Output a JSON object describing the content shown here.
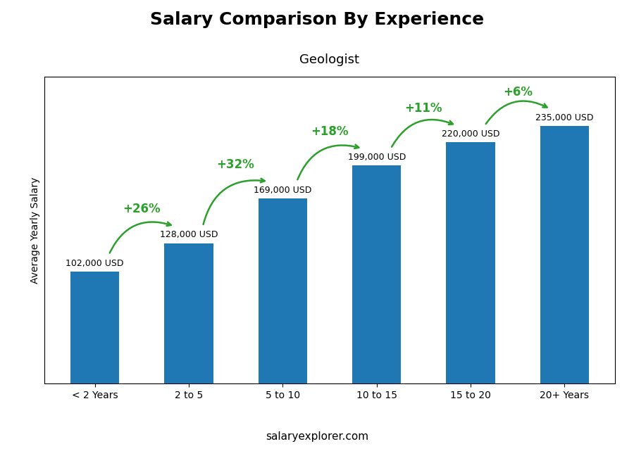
{
  "chart_data": {
    "type": "bar",
    "title": "Salary Comparison By Experience",
    "subtitle": "Geologist",
    "ylabel": "Average Yearly Salary",
    "footer": "salaryexplorer.com",
    "categories": [
      "< 2 Years",
      "2 to 5",
      "5 to 10",
      "10 to 15",
      "15 to 20",
      "20+ Years"
    ],
    "values": [
      102000,
      128000,
      169000,
      199000,
      220000,
      235000
    ],
    "value_labels": [
      "102,000 USD",
      "128,000 USD",
      "169,000 USD",
      "199,000 USD",
      "220,000 USD",
      "235,000 USD"
    ],
    "data_labels": true,
    "annotations": [
      "+26%",
      "+32%",
      "+18%",
      "+11%",
      "+6%"
    ],
    "ylim": [
      0,
      280000
    ],
    "yticks": [],
    "tick_labels": "x",
    "grid": false
  }
}
